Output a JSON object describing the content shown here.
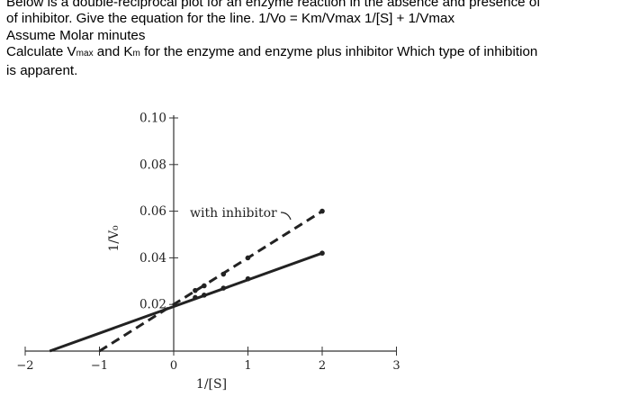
{
  "question": {
    "line1": "Below is a double-reciprocal plot for an enzyme reaction in the absence and presence of",
    "line2": "of inhibitor. Give the equation for the line.  1/Vo = Km/Vmax 1/[S] + 1/Vmax",
    "line3": "Assume Molar minutes",
    "line4_part1": "Calculate V",
    "line4_sub1": "max",
    "line4_part2": " and K",
    "line4_sub2": "m",
    "line4_part3": " for the enzyme and enzyme plus inhibitor Which type of inhibition",
    "line5": "is apparent."
  },
  "chart_data": {
    "type": "line",
    "xlabel": "1/[S]",
    "ylabel": "1/V₀",
    "xlim": [
      -2,
      3
    ],
    "ylim": [
      0,
      0.1
    ],
    "x_ticks": [
      -2,
      -1,
      0,
      1,
      2,
      3
    ],
    "x_tick_labels": [
      "−2",
      "−1",
      "0",
      "1",
      "2",
      "3"
    ],
    "y_ticks": [
      0.02,
      0.04,
      0.06,
      0.08,
      0.1
    ],
    "y_tick_labels": [
      "0.02",
      "0.04",
      "0.06",
      "0.08",
      "0.10"
    ],
    "annotation": "with inhibitor",
    "series": [
      {
        "style": "solid",
        "color": "#222222",
        "line": {
          "x": [
            -1.67,
            2.0
          ],
          "y": [
            0.0,
            0.042
          ]
        },
        "points": {
          "x": [
            0.29,
            0.41,
            0.67,
            1.0,
            2.0
          ],
          "y": [
            0.023,
            0.024,
            0.027,
            0.031,
            0.042
          ]
        }
      },
      {
        "name": "with inhibitor",
        "style": "dashed",
        "color": "#222222",
        "line": {
          "x": [
            -1.0,
            2.0
          ],
          "y": [
            0.0,
            0.06
          ]
        },
        "points": {
          "x": [
            0.29,
            0.41,
            0.67,
            1.0,
            2.0
          ],
          "y": [
            0.026,
            0.028,
            0.033,
            0.04,
            0.06
          ]
        }
      }
    ]
  }
}
